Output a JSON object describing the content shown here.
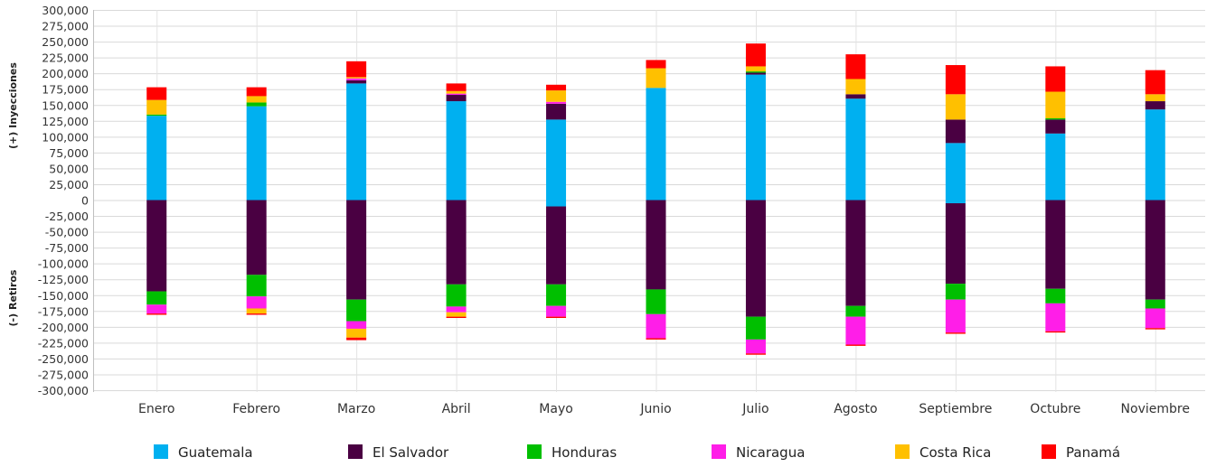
{
  "chart_data": {
    "type": "bar",
    "stacked": true,
    "ylabel_top": "(+) Inyecciones",
    "ylabel_bottom": "(-) Retiros",
    "ylim": [
      -300000,
      300000
    ],
    "ytick_step": 25000,
    "ytick_labels": [
      "300,000",
      "275,000",
      "250,000",
      "225,000",
      "200,000",
      "175,000",
      "150,000",
      "125,000",
      "100,000",
      "75,000",
      "50,000",
      "25,000",
      "0",
      "-25,000",
      "-50,000",
      "-75,000",
      "-100,000",
      "-125,000",
      "-150,000",
      "-175,000",
      "-200,000",
      "-225,000",
      "-250,000",
      "-275,000",
      "-300,000"
    ],
    "categories": [
      "Enero",
      "Febrero",
      "Marzo",
      "Abril",
      "Mayo",
      "Junio",
      "Julio",
      "Agosto",
      "Septiembre",
      "Octubre",
      "Noviembre"
    ],
    "grid": true,
    "legend_position": "bottom",
    "series": [
      {
        "name": "Guatemala",
        "color": "#00b0f0",
        "values": [
          133000,
          148000,
          184000,
          156000,
          127000,
          177000,
          198000,
          160000,
          90000,
          105000,
          143000
        ],
        "negative": [
          0,
          0,
          0,
          0,
          -10000,
          0,
          0,
          0,
          -5000,
          0,
          0
        ]
      },
      {
        "name": "El Salvador",
        "color": "#4a0042",
        "values": [
          0,
          0,
          5000,
          10000,
          25000,
          0,
          3000,
          7000,
          37000,
          22000,
          13000
        ],
        "negative": [
          -144000,
          -118000,
          -157000,
          -133000,
          -123000,
          -141000,
          -184000,
          -167000,
          -127000,
          -140000,
          -157000
        ]
      },
      {
        "name": "Honduras",
        "color": "#00bf00",
        "values": [
          2000,
          6000,
          0,
          0,
          0,
          0,
          2000,
          0,
          0,
          2000,
          0
        ],
        "negative": [
          -21000,
          -34000,
          -34000,
          -35000,
          -34000,
          -39000,
          -36000,
          -17000,
          -25000,
          -23000,
          -14000
        ]
      },
      {
        "name": "Nicaragua",
        "color": "#ff1ee8",
        "values": [
          0,
          0,
          3000,
          2000,
          3000,
          0,
          0,
          0,
          0,
          0,
          0
        ],
        "negative": [
          -14000,
          -19000,
          -12000,
          -9000,
          -17000,
          -38000,
          -22000,
          -44000,
          -52000,
          -44000,
          -31000
        ]
      },
      {
        "name": "Costa Rica",
        "color": "#ffc000",
        "values": [
          23000,
          10000,
          2000,
          4000,
          18000,
          31000,
          8000,
          24000,
          40000,
          42000,
          11000
        ],
        "negative": [
          0,
          -8000,
          -14000,
          -7000,
          0,
          0,
          0,
          0,
          0,
          0,
          0
        ]
      },
      {
        "name": "Panamá",
        "color": "#ff0000",
        "values": [
          20000,
          14000,
          25000,
          12000,
          9000,
          13000,
          36000,
          39000,
          46000,
          40000,
          38000
        ],
        "negative": [
          -2000,
          -2000,
          -4000,
          -2000,
          -2000,
          -2000,
          -2000,
          -2000,
          -2000,
          -2000,
          -2000
        ]
      }
    ]
  }
}
